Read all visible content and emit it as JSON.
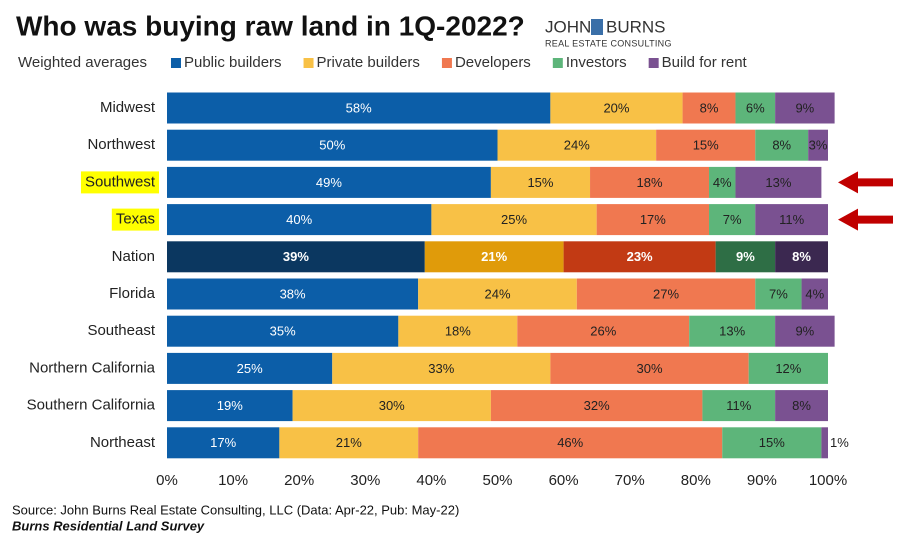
{
  "chart_data": {
    "type": "stacked_bar_horizontal",
    "title": "Who was buying raw land in 1Q-2022?",
    "logo": {
      "line1": "JOHN",
      "line2": "BURNS",
      "line3": "REAL ESTATE CONSULTING"
    },
    "legend_title": "Weighted averages",
    "source": "Source: John Burns Real Estate Consulting, LLC (Data: Apr-22, Pub: May-22)",
    "survey": "Burns Residential Land Survey",
    "categories": [
      "Midwest",
      "Northwest",
      "Southwest",
      "Texas",
      "Nation",
      "Florida",
      "Southeast",
      "Northern California",
      "Southern California",
      "Northeast"
    ],
    "highlighted": "Nation",
    "marked": [
      "Southwest",
      "Texas"
    ],
    "marked_color": "#ffff00",
    "arrow_color": "#c00000",
    "series": [
      {
        "name": "Public builders",
        "color": "#0c5ea8",
        "highlight_color": "#0b3760",
        "values": [
          58,
          50,
          49,
          40,
          39,
          38,
          35,
          25,
          19,
          17
        ],
        "value_labels": [
          "58%",
          "50%",
          "49%",
          "40%",
          "39%",
          "38%",
          "35%",
          "25%",
          "19%",
          "17%"
        ]
      },
      {
        "name": "Private builders",
        "color": "#f8c146",
        "highlight_color": "#e09b0a",
        "values": [
          20,
          24,
          15,
          25,
          21,
          24,
          18,
          33,
          30,
          21
        ],
        "value_labels": [
          "20%",
          "24%",
          "15%",
          "25%",
          "21%",
          "24%",
          "18%",
          "33%",
          "30%",
          "21%"
        ]
      },
      {
        "name": "Developers",
        "color": "#f07850",
        "highlight_color": "#c23a14",
        "values": [
          8,
          15,
          18,
          17,
          23,
          27,
          26,
          30,
          32,
          46
        ],
        "value_labels": [
          "8%",
          "15%",
          "18%",
          "17%",
          "23%",
          "27%",
          "26%",
          "30%",
          "32%",
          "46%"
        ]
      },
      {
        "name": "Investors",
        "color": "#5db57a",
        "highlight_color": "#2e6e45",
        "values": [
          6,
          8,
          4,
          7,
          9,
          7,
          13,
          12,
          11,
          15
        ],
        "value_labels": [
          "6%",
          "8%",
          "4%",
          "7%",
          "9%",
          "7%",
          "13%",
          "12%",
          "11%",
          "15%"
        ]
      },
      {
        "name": "Build for rent",
        "color": "#7a5191",
        "highlight_color": "#3b2850",
        "values": [
          9,
          3,
          13,
          11,
          8,
          4,
          9,
          0,
          8,
          1
        ],
        "value_labels": [
          "9%",
          "3%",
          "13%",
          "11%",
          "8%",
          "4%",
          "9%",
          null,
          "8%",
          "1%"
        ]
      }
    ],
    "xlim": [
      0,
      100
    ],
    "xticks": [
      {
        "value": 0,
        "label": "0%"
      },
      {
        "value": 10,
        "label": "10%"
      },
      {
        "value": 20,
        "label": "20%"
      },
      {
        "value": 30,
        "label": "30%"
      },
      {
        "value": 40,
        "label": "40%"
      },
      {
        "value": 50,
        "label": "50%"
      },
      {
        "value": 60,
        "label": "60%"
      },
      {
        "value": 70,
        "label": "70%"
      },
      {
        "value": 80,
        "label": "80%"
      },
      {
        "value": 90,
        "label": "90%"
      },
      {
        "value": 100,
        "label": "100%"
      }
    ]
  }
}
